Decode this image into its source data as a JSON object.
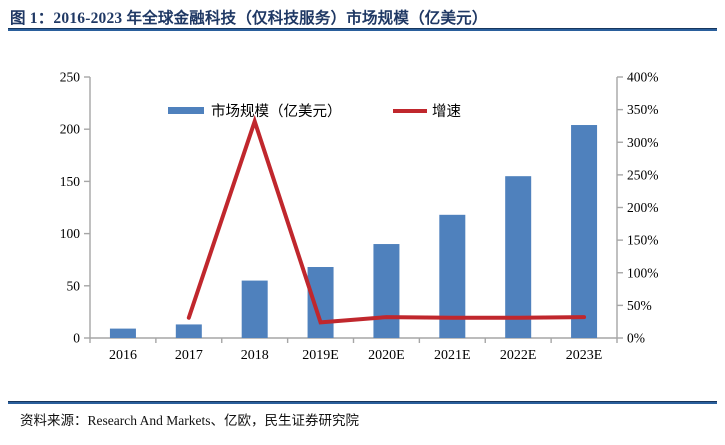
{
  "header": {
    "title": "图 1：2016-2023 年全球金融科技（仅科技服务）市场规模（亿美元）"
  },
  "footer": {
    "source": "资料来源：Research And Markets、亿欧，民生证券研究院"
  },
  "colors": {
    "bar": "#4f81bd",
    "line": "#c0272d",
    "axis": "#a6a6a6",
    "title": "#1f3864",
    "rule": "#2a5f9c",
    "label": "#000000"
  },
  "chart_data": {
    "type": "bar",
    "categories": [
      "2016",
      "2017",
      "2018",
      "2019E",
      "2020E",
      "2021E",
      "2022E",
      "2023E"
    ],
    "series": [
      {
        "name": "市场规模（亿美元）",
        "type": "bar",
        "axis": "left",
        "color": "#4f81bd",
        "values": [
          9,
          13,
          55,
          68,
          90,
          118,
          155,
          204
        ]
      },
      {
        "name": "增速",
        "type": "line",
        "axis": "right",
        "color": "#c0272d",
        "values": [
          null,
          31,
          332,
          24,
          32,
          31,
          31,
          32
        ]
      }
    ],
    "left_axis": {
      "min": 0,
      "max": 250,
      "ticks": [
        "0",
        "50",
        "100",
        "150",
        "200",
        "250"
      ]
    },
    "right_axis": {
      "min": 0,
      "max": 400,
      "ticks": [
        "0%",
        "50%",
        "100%",
        "150%",
        "200%",
        "250%",
        "300%",
        "350%",
        "400%"
      ]
    },
    "legend_position": "top-inside",
    "grid": "off",
    "title": "2016-2023 年全球金融科技（仅科技服务）市场规模（亿美元）"
  }
}
